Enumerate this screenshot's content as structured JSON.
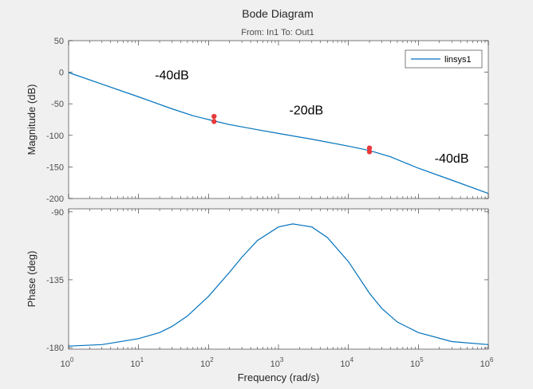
{
  "chart_data": {
    "type": "line",
    "title": "Bode Diagram",
    "subtitle": "From: In1  To: Out1",
    "xlabel": "Frequency  (rad/s)",
    "xscale": "log",
    "xlim": [
      1,
      1000000
    ],
    "xticks": [
      {
        "value": 1,
        "base": "10",
        "exp": "0"
      },
      {
        "value": 10,
        "base": "10",
        "exp": "1"
      },
      {
        "value": 100,
        "base": "10",
        "exp": "2"
      },
      {
        "value": 1000,
        "base": "10",
        "exp": "3"
      },
      {
        "value": 10000,
        "base": "10",
        "exp": "4"
      },
      {
        "value": 100000,
        "base": "10",
        "exp": "5"
      },
      {
        "value": 1000000,
        "base": "10",
        "exp": "6"
      }
    ],
    "magnitude": {
      "ylabel": "Magnitude (dB)",
      "ylim": [
        -200,
        50
      ],
      "yticks": [
        "50",
        "0",
        "-50",
        "-100",
        "-150",
        "-200"
      ],
      "ytick_values": [
        50,
        0,
        -50,
        -100,
        -150,
        -200
      ],
      "series": [
        {
          "name": "linsys1",
          "color": "#0072bd",
          "x": [
            1,
            3,
            10,
            30,
            60,
            100,
            200,
            500,
            1000,
            3000,
            10000,
            20000,
            40000,
            100000,
            300000,
            1000000
          ],
          "y": [
            -0.5,
            -19,
            -39,
            -58,
            -69,
            -75,
            -83,
            -91,
            -97,
            -106,
            -117,
            -124,
            -134,
            -152,
            -171,
            -192
          ]
        }
      ],
      "markers": [
        {
          "x": 120,
          "y": -70
        },
        {
          "x": 120,
          "y": -78
        },
        {
          "x": 20000,
          "y": -120
        },
        {
          "x": 20000,
          "y": -126
        }
      ],
      "marker_color": "#e8393c",
      "annotations": [
        {
          "text": "-40dB",
          "x": 30,
          "y": -11
        },
        {
          "text": "-20dB",
          "x": 2500,
          "y": -67
        },
        {
          "text": "-40dB",
          "x": 300000,
          "y": -143
        }
      ],
      "legend": {
        "entries": [
          "linsys1"
        ],
        "placement": "top-right"
      }
    },
    "phase": {
      "ylabel": "Phase (deg)",
      "ylim": [
        -181,
        -88
      ],
      "yticks": [
        "-90",
        "-135",
        "-180"
      ],
      "ytick_values": [
        -90,
        -135,
        -180
      ],
      "series": [
        {
          "name": "linsys1",
          "color": "#0072bd",
          "x": [
            1,
            3,
            10,
            20,
            30,
            50,
            100,
            200,
            300,
            500,
            1000,
            1600,
            3000,
            5000,
            10000,
            20000,
            30000,
            50000,
            100000,
            300000,
            1000000
          ],
          "y": [
            -179,
            -178,
            -174,
            -170,
            -166,
            -159,
            -146,
            -130,
            -120,
            -109,
            -100,
            -98,
            -100,
            -107,
            -123,
            -144,
            -154,
            -163,
            -170,
            -176,
            -178
          ]
        }
      ]
    }
  }
}
